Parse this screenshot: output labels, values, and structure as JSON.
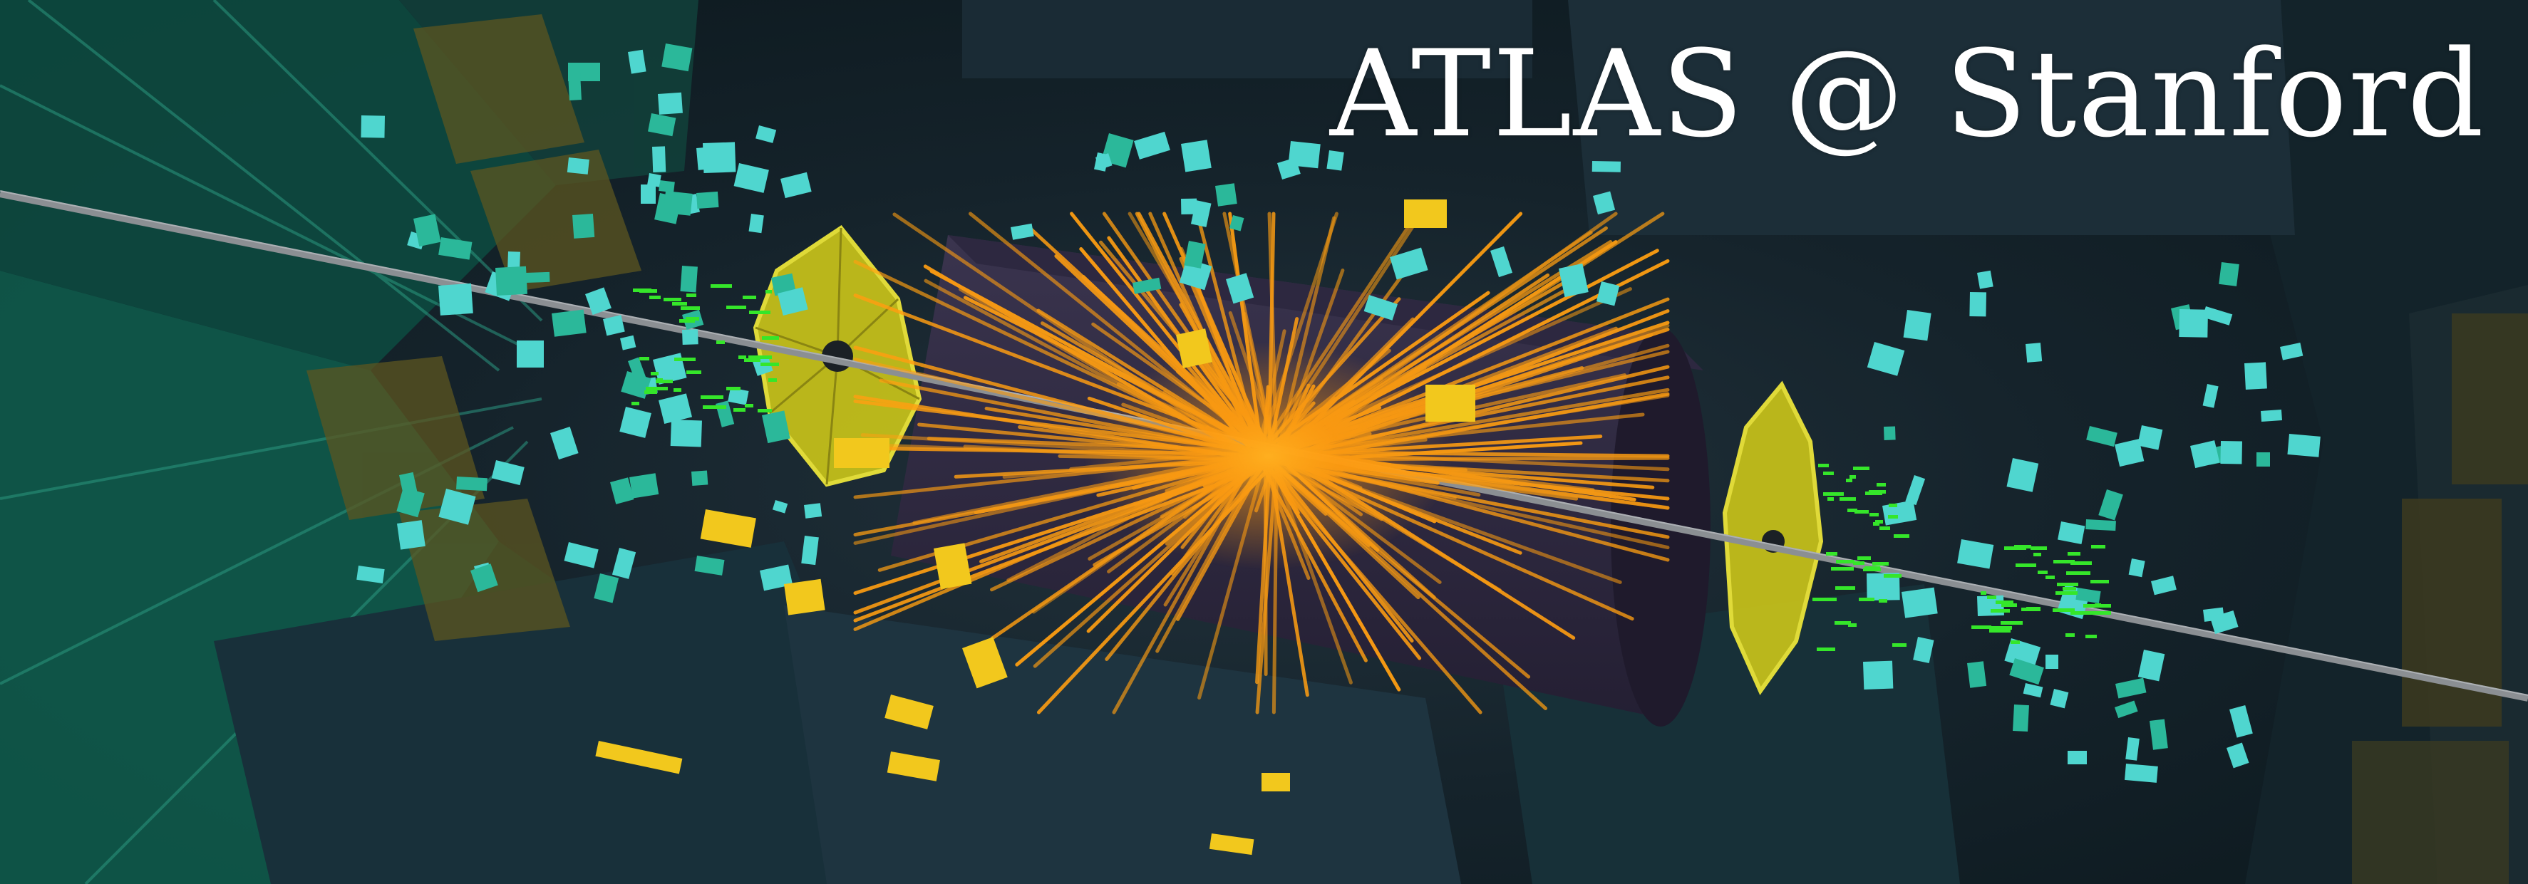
{
  "banner": {
    "title": "ATLAS @ Stanford",
    "title_color": "#ffffff"
  },
  "scene": {
    "description_icon": "atlas-collision-event-display",
    "colors": {
      "background": "#15232b",
      "outer_muon_chambers": "#0f6b5a",
      "calorimeter_cells": "#4fd6cf",
      "tracks": "#ff9f12",
      "energy_deposits": "#f2c81d",
      "endcap_disks": "#d6d21a",
      "hits": "#35e62a",
      "beam_pipe": "#8b8f93"
    }
  }
}
